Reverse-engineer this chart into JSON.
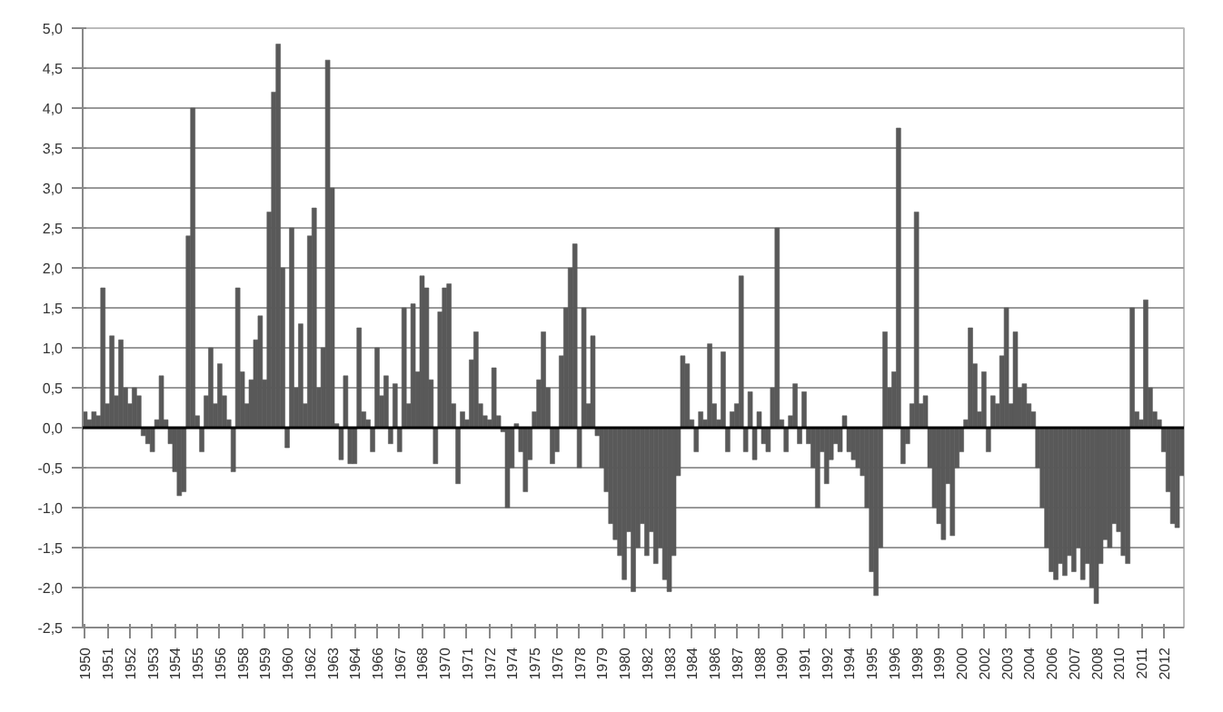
{
  "chart_data": {
    "type": "bar",
    "categories": [
      "1950",
      null,
      null,
      null,
      null,
      "1951",
      null,
      null,
      null,
      null,
      "1952",
      null,
      null,
      null,
      null,
      "1953",
      null,
      null,
      null,
      null,
      "1954",
      null,
      null,
      null,
      null,
      "1955",
      null,
      null,
      null,
      null,
      "1956",
      null,
      null,
      null,
      null,
      "1958",
      null,
      null,
      null,
      null,
      "1959",
      null,
      null,
      null,
      null,
      "1960",
      null,
      null,
      null,
      null,
      "1962",
      null,
      null,
      null,
      null,
      "1963",
      null,
      null,
      null,
      null,
      "1964",
      null,
      null,
      null,
      null,
      "1966",
      null,
      null,
      null,
      null,
      "1967",
      null,
      null,
      null,
      null,
      "1968",
      null,
      null,
      null,
      null,
      "1970",
      null,
      null,
      null,
      null,
      "1971",
      null,
      null,
      null,
      null,
      "1972",
      null,
      null,
      null,
      null,
      "1974",
      null,
      null,
      null,
      null,
      "1975",
      null,
      null,
      null,
      null,
      "1976",
      null,
      null,
      null,
      null,
      "1978",
      null,
      null,
      null,
      null,
      "1979",
      null,
      null,
      null,
      null,
      "1980",
      null,
      null,
      null,
      null,
      "1982",
      null,
      null,
      null,
      null,
      "1983",
      null,
      null,
      null,
      null,
      "1984",
      null,
      null,
      null,
      null,
      "1986",
      null,
      null,
      null,
      null,
      "1987",
      null,
      null,
      null,
      null,
      "1988",
      null,
      null,
      null,
      null,
      "1990",
      null,
      null,
      null,
      null,
      "1991",
      null,
      null,
      null,
      null,
      "1992",
      null,
      null,
      null,
      null,
      "1994",
      null,
      null,
      null,
      null,
      "1995",
      null,
      null,
      null,
      null,
      "1996",
      null,
      null,
      null,
      null,
      "1998",
      null,
      null,
      null,
      null,
      "1999",
      null,
      null,
      null,
      null,
      "2000",
      null,
      null,
      null,
      null,
      "2002",
      null,
      null,
      null,
      null,
      "2003",
      null,
      null,
      null,
      null,
      "2004",
      null,
      null,
      null,
      null,
      "2006",
      null,
      null,
      null,
      null,
      "2007",
      null,
      null,
      null,
      null,
      "2008",
      null,
      null,
      null,
      null,
      "2010",
      null,
      null,
      null,
      null,
      "2011",
      null,
      null,
      null,
      null,
      "2012",
      null,
      null,
      null,
      null
    ],
    "series": [
      {
        "color": "#595959",
        "values": [
          0.2,
          0.1,
          0.2,
          0.15,
          1.75,
          0.3,
          1.15,
          0.4,
          1.1,
          0.5,
          0.3,
          0.5,
          0.4,
          -0.1,
          -0.2,
          -0.3,
          0.1,
          0.65,
          0.1,
          -0.2,
          -0.55,
          -0.85,
          -0.8,
          2.4,
          4.0,
          0.15,
          -0.3,
          0.4,
          1.0,
          0.3,
          0.8,
          0.4,
          0.1,
          -0.55,
          1.75,
          0.7,
          0.3,
          0.6,
          1.1,
          1.4,
          0.6,
          2.7,
          4.2,
          4.8,
          2.0,
          -0.25,
          2.5,
          0.5,
          1.3,
          0.3,
          2.4,
          2.75,
          0.5,
          1.0,
          4.6,
          3.0,
          0.05,
          -0.4,
          0.65,
          -0.45,
          -0.45,
          1.25,
          0.2,
          0.1,
          -0.3,
          1.0,
          0.4,
          0.65,
          -0.2,
          0.55,
          -0.3,
          1.5,
          0.3,
          1.55,
          0.7,
          1.9,
          1.75,
          0.6,
          -0.45,
          1.45,
          1.75,
          1.8,
          0.3,
          -0.7,
          0.2,
          0.1,
          0.85,
          1.2,
          0.3,
          0.15,
          0.1,
          0.75,
          0.15,
          -0.05,
          -1.0,
          -0.5,
          0.05,
          -0.3,
          -0.8,
          -0.4,
          0.2,
          0.6,
          1.2,
          0.5,
          -0.45,
          -0.3,
          0.9,
          1.5,
          2.0,
          2.3,
          -0.5,
          1.5,
          0.3,
          1.15,
          -0.1,
          -0.5,
          -0.8,
          -1.2,
          -1.4,
          -1.6,
          -1.9,
          -1.3,
          -2.05,
          -1.5,
          -1.2,
          -1.6,
          -1.3,
          -1.7,
          -1.5,
          -1.9,
          -2.05,
          -1.6,
          -0.6,
          0.9,
          0.8,
          0.1,
          -0.3,
          0.2,
          0.1,
          1.05,
          0.3,
          0.1,
          0.95,
          -0.3,
          0.2,
          0.3,
          1.9,
          -0.3,
          0.45,
          -0.4,
          0.2,
          -0.2,
          -0.3,
          0.5,
          2.5,
          0.1,
          -0.3,
          0.15,
          0.55,
          -0.2,
          0.45,
          -0.2,
          -0.5,
          -1.0,
          -0.3,
          -0.7,
          -0.4,
          -0.2,
          -0.3,
          0.15,
          -0.3,
          -0.4,
          -0.5,
          -0.6,
          -1.0,
          -1.8,
          -2.1,
          -1.5,
          1.2,
          0.5,
          0.7,
          3.75,
          -0.45,
          -0.2,
          0.3,
          2.7,
          0.3,
          0.4,
          -0.5,
          -1.0,
          -1.2,
          -1.4,
          -0.7,
          -1.35,
          -0.5,
          -0.3,
          0.1,
          1.25,
          0.8,
          0.2,
          0.7,
          -0.3,
          0.4,
          0.3,
          0.9,
          1.5,
          0.3,
          1.2,
          0.5,
          0.55,
          0.3,
          0.2,
          -0.5,
          -1.0,
          -1.5,
          -1.8,
          -1.9,
          -1.7,
          -1.85,
          -1.6,
          -1.8,
          -1.5,
          -1.9,
          -1.7,
          -2.0,
          -2.2,
          -1.7,
          -1.4,
          -1.5,
          -1.2,
          -1.3,
          -1.6,
          -1.7,
          1.5,
          0.2,
          0.1,
          1.6,
          0.5,
          0.2,
          0.1,
          -0.3,
          -0.8,
          -1.2,
          -1.25,
          -0.6
        ]
      }
    ],
    "ylim": [
      -2.5,
      5.0
    ],
    "yticks": [
      {
        "value": -2.5,
        "label": "-2,5"
      },
      {
        "value": -2.0,
        "label": "-2,0"
      },
      {
        "value": -1.5,
        "label": "-1,5"
      },
      {
        "value": -1.0,
        "label": "-1,0"
      },
      {
        "value": -0.5,
        "label": "-0,5"
      },
      {
        "value": 0,
        "label": "0,0"
      },
      {
        "value": 0.5,
        "label": "0,5"
      },
      {
        "value": 1.0,
        "label": "1,0"
      },
      {
        "value": 1.5,
        "label": "1,5"
      },
      {
        "value": 2.0,
        "label": "2,0"
      },
      {
        "value": 2.5,
        "label": "2,5"
      },
      {
        "value": 3.0,
        "label": "3,0"
      },
      {
        "value": 3.5,
        "label": "3,5"
      },
      {
        "value": 4.0,
        "label": "4,0"
      },
      {
        "value": 4.5,
        "label": "4,5"
      },
      {
        "value": 5.0,
        "label": "5,0"
      }
    ],
    "grid": "y"
  }
}
